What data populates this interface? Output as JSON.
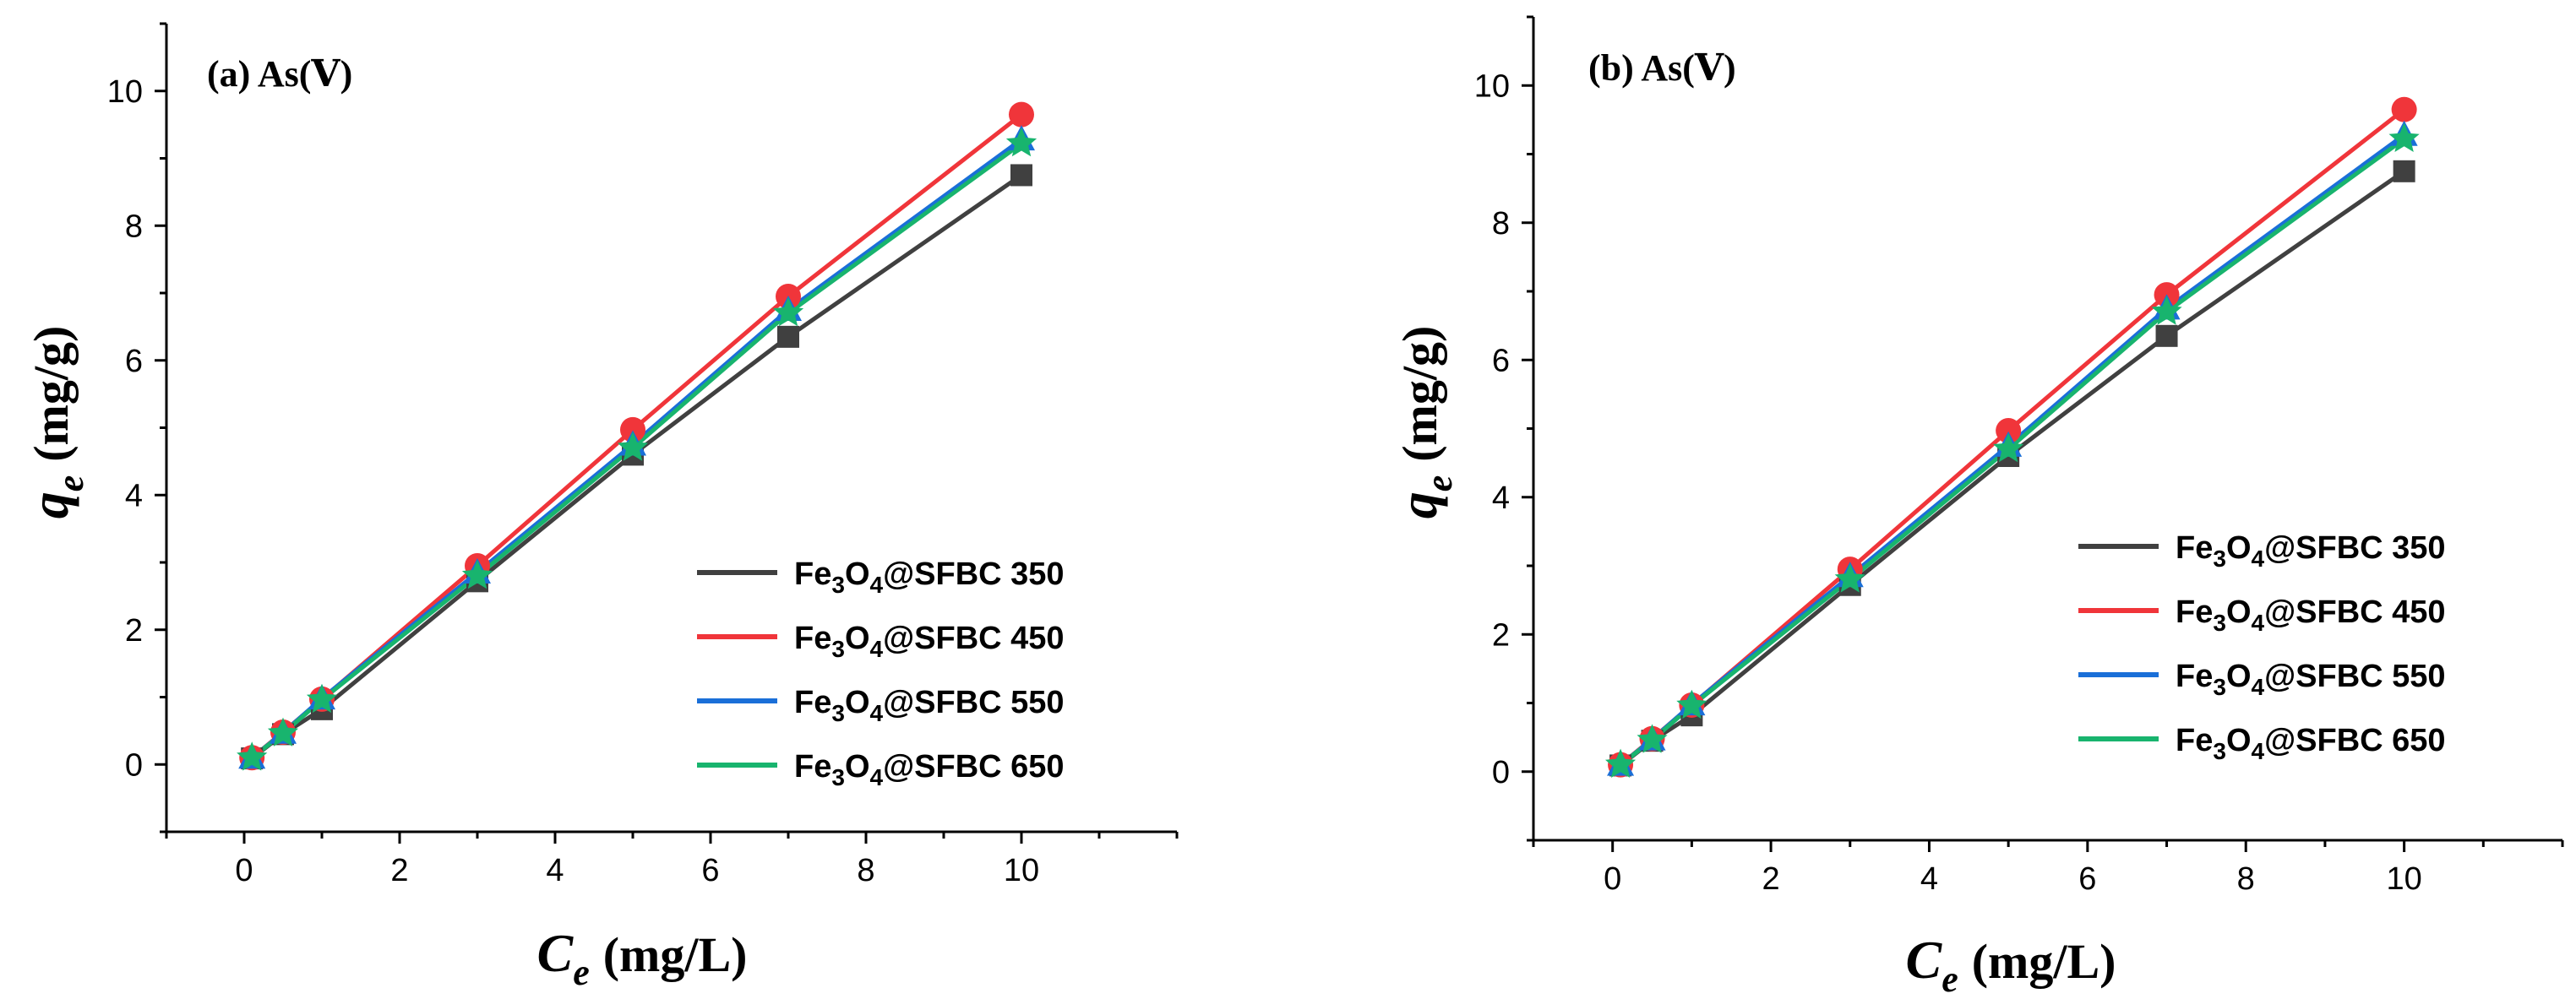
{
  "chart_data": [
    {
      "type": "line",
      "panel_label": "(a) As(Ⅴ)",
      "xlabel": {
        "symbol": "C",
        "subscript": "e",
        "unit": "(mg/L)"
      },
      "ylabel": {
        "symbol": "q",
        "subscript": "e",
        "unit": "(mg/g)"
      },
      "xlim": [
        -1,
        12
      ],
      "ylim": [
        -1,
        11
      ],
      "xticks": [
        0,
        2,
        4,
        6,
        8,
        10
      ],
      "yticks": [
        0,
        2,
        4,
        6,
        8,
        10
      ],
      "legend_position": "bottom-right",
      "x": [
        0.1,
        0.5,
        1,
        3,
        5,
        7,
        10
      ],
      "series": [
        {
          "name": "Fe3O4@SFBC 350",
          "label_parts": [
            "Fe",
            "3",
            "O",
            "4",
            "@SFBC 350"
          ],
          "color": "#404040",
          "marker": "square",
          "values": [
            0.09,
            0.45,
            0.82,
            2.72,
            4.6,
            6.35,
            8.75
          ]
        },
        {
          "name": "Fe3O4@SFBC 450",
          "label_parts": [
            "Fe",
            "3",
            "O",
            "4",
            "@SFBC 450"
          ],
          "color": "#f0353a",
          "marker": "circle",
          "values": [
            0.1,
            0.48,
            0.97,
            2.95,
            4.97,
            6.95,
            9.65
          ]
        },
        {
          "name": "Fe3O4@SFBC 550",
          "label_parts": [
            "Fe",
            "3",
            "O",
            "4",
            "@SFBC 550"
          ],
          "color": "#1a6fd8",
          "marker": "triangle",
          "values": [
            0.1,
            0.47,
            0.98,
            2.85,
            4.75,
            6.75,
            9.28
          ]
        },
        {
          "name": "Fe3O4@SFBC 650",
          "label_parts": [
            "Fe",
            "3",
            "O",
            "4",
            "@SFBC 650"
          ],
          "color": "#18b46e",
          "marker": "star",
          "values": [
            0.1,
            0.46,
            0.96,
            2.8,
            4.7,
            6.7,
            9.22
          ]
        }
      ]
    },
    {
      "type": "line",
      "panel_label": "(b) As(Ⅴ)",
      "xlabel": {
        "symbol": "C",
        "subscript": "e",
        "unit": "(mg/L)"
      },
      "ylabel": {
        "symbol": "q",
        "subscript": "e",
        "unit": "(mg/g)"
      },
      "xlim": [
        -1,
        12
      ],
      "ylim": [
        -1,
        11
      ],
      "xticks": [
        0,
        2,
        4,
        6,
        8,
        10
      ],
      "yticks": [
        0,
        2,
        4,
        6,
        8,
        10
      ],
      "legend_position": "bottom-right",
      "x": [
        0.1,
        0.5,
        1,
        3,
        5,
        7,
        10
      ],
      "series": [
        {
          "name": "Fe3O4@SFBC 350",
          "label_parts": [
            "Fe",
            "3",
            "O",
            "4",
            "@SFBC 350"
          ],
          "color": "#404040",
          "marker": "square",
          "values": [
            0.09,
            0.45,
            0.82,
            2.72,
            4.6,
            6.35,
            8.75
          ]
        },
        {
          "name": "Fe3O4@SFBC 450",
          "label_parts": [
            "Fe",
            "3",
            "O",
            "4",
            "@SFBC 450"
          ],
          "color": "#f0353a",
          "marker": "circle",
          "values": [
            0.1,
            0.48,
            0.97,
            2.95,
            4.97,
            6.95,
            9.65
          ]
        },
        {
          "name": "Fe3O4@SFBC 550",
          "label_parts": [
            "Fe",
            "3",
            "O",
            "4",
            "@SFBC 550"
          ],
          "color": "#1a6fd8",
          "marker": "triangle",
          "values": [
            0.1,
            0.47,
            0.98,
            2.85,
            4.75,
            6.75,
            9.28
          ]
        },
        {
          "name": "Fe3O4@SFBC 650",
          "label_parts": [
            "Fe",
            "3",
            "O",
            "4",
            "@SFBC 650"
          ],
          "color": "#18b46e",
          "marker": "star",
          "values": [
            0.1,
            0.46,
            0.96,
            2.8,
            4.7,
            6.7,
            9.22
          ]
        }
      ]
    }
  ]
}
